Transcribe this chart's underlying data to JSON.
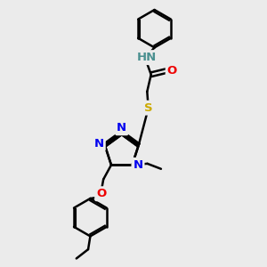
{
  "bg_color": "#ebebeb",
  "bond_color": "#000000",
  "bond_width": 1.8,
  "atom_colors": {
    "N": "#0000ee",
    "O": "#ee0000",
    "S": "#ccaa00",
    "NH": "#4a9090",
    "C": "#000000"
  },
  "font_size": 9.5,
  "label_bg": "#ebebeb"
}
